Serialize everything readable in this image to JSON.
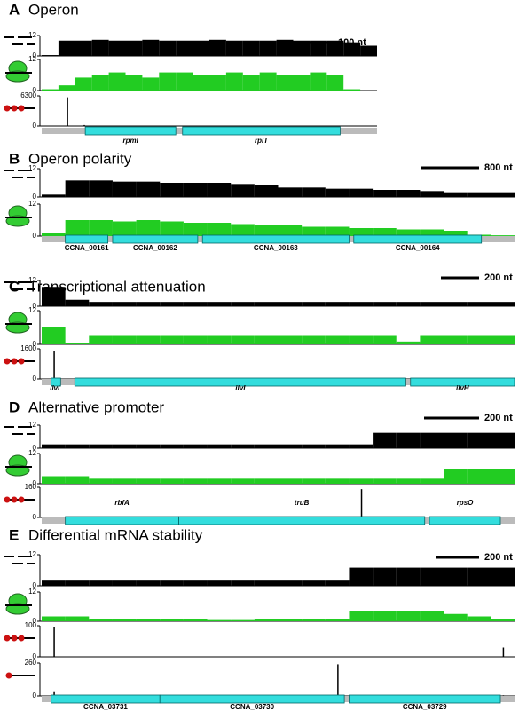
{
  "panels": [
    {
      "letter": "A",
      "title": "Operon",
      "scale_label": "100 nt",
      "tracks": [
        {
          "kind": "rna",
          "color": "#000000",
          "yticks": [
            0,
            12
          ],
          "profile": [
            0.5,
            9,
            9,
            9.5,
            9,
            9,
            9.5,
            9,
            9,
            9,
            9.5,
            9,
            9,
            9,
            9.5,
            9,
            9,
            9,
            8,
            6
          ]
        },
        {
          "kind": "ribosome",
          "color": "#22cc22",
          "yticks": [
            0,
            12
          ],
          "profile": [
            0.5,
            2,
            5,
            6,
            7,
            6,
            5,
            7,
            7,
            6,
            6,
            7,
            6,
            7,
            6,
            6,
            7,
            6,
            0.5,
            0
          ]
        },
        {
          "kind": "polysome",
          "color": "#000000",
          "yticks": [
            0,
            6300
          ],
          "profile": [
            0,
            6000,
            200,
            0,
            0,
            0,
            0,
            0,
            0,
            0,
            0,
            0,
            0,
            0,
            0,
            0,
            0,
            0,
            0,
            0
          ]
        }
      ],
      "genes": [
        "rpmI",
        "rplT"
      ]
    },
    {
      "letter": "B",
      "title": "Operon polarity",
      "scale_label": "800 nt",
      "tracks": [
        {
          "kind": "rna",
          "color": "#000000",
          "yticks": [
            0,
            12
          ],
          "profile": [
            1,
            7,
            7,
            6.5,
            6.5,
            6,
            6,
            6,
            5.5,
            5,
            4,
            4,
            3.5,
            3.5,
            3,
            3,
            2.5,
            2,
            2,
            2
          ]
        },
        {
          "kind": "ribosome",
          "color": "#22cc22",
          "yticks": [
            0,
            12
          ],
          "profile": [
            1,
            6,
            6,
            5.5,
            6,
            5.5,
            5,
            5,
            4.5,
            4,
            4,
            3.5,
            3.5,
            3,
            3,
            2.5,
            2.5,
            2,
            0.5,
            0.3
          ]
        }
      ],
      "genes": [
        "CCNA_00161",
        "CCNA_00162",
        "CCNA_00163",
        "CCNA_00164"
      ]
    },
    {
      "letter": "C",
      "title": "Transcriptional attenuation",
      "scale_label": "200 nt",
      "tracks": [
        {
          "kind": "rna",
          "color": "#000000",
          "yticks": [
            0,
            12
          ],
          "profile": [
            9,
            3,
            2,
            2,
            2,
            2,
            2,
            2,
            2,
            2,
            2,
            2,
            2,
            2,
            2,
            2,
            2,
            2,
            2,
            2
          ]
        },
        {
          "kind": "ribosome",
          "color": "#22cc22",
          "yticks": [
            0,
            12
          ],
          "profile": [
            6,
            0.5,
            3,
            3,
            3,
            3,
            3,
            3,
            3,
            3,
            3,
            3,
            3,
            3,
            3,
            1,
            3,
            3,
            3,
            3
          ]
        },
        {
          "kind": "polysome",
          "color": "#000000",
          "yticks": [
            0,
            1600
          ],
          "profile": [
            1500,
            0,
            0,
            0,
            0,
            0,
            0,
            0,
            0,
            0,
            0,
            0,
            0,
            0,
            0,
            0,
            0,
            0,
            0,
            0
          ]
        }
      ],
      "genes": [
        "ilvL",
        "ilvI",
        "ilvH"
      ]
    },
    {
      "letter": "D",
      "title": "Alternative promoter",
      "scale_label": "200 nt",
      "tracks": [
        {
          "kind": "rna",
          "color": "#000000",
          "yticks": [
            0,
            12
          ],
          "profile": [
            2,
            2,
            2,
            2,
            2,
            2,
            2,
            2,
            2,
            2,
            2,
            2,
            2,
            2,
            8,
            8,
            8,
            8,
            8,
            8
          ]
        },
        {
          "kind": "ribosome",
          "color": "#22cc22",
          "yticks": [
            0,
            12
          ],
          "profile": [
            3,
            3,
            2,
            2,
            2,
            2,
            2,
            2,
            2,
            2,
            2,
            2,
            2,
            2,
            2,
            2,
            2,
            6,
            6,
            6
          ]
        },
        {
          "kind": "polysome",
          "color": "#000000",
          "yticks": [
            0,
            160
          ],
          "profile": [
            0,
            0,
            0,
            0,
            0,
            0,
            0,
            0,
            0,
            0,
            0,
            0,
            0,
            150,
            0,
            0,
            0,
            0,
            0,
            0
          ]
        }
      ],
      "genes": [
        "rbfA",
        "truB",
        "rpsO"
      ]
    },
    {
      "letter": "E",
      "title": "Differential mRNA stability",
      "scale_label": "200 nt",
      "tracks": [
        {
          "kind": "rna",
          "color": "#000000",
          "yticks": [
            0,
            12
          ],
          "profile": [
            2,
            2,
            2,
            2,
            2,
            2,
            2,
            2,
            2,
            2,
            2,
            2,
            2,
            7,
            7,
            7,
            7,
            7,
            7,
            7
          ]
        },
        {
          "kind": "ribosome",
          "color": "#22cc22",
          "yticks": [
            0,
            12
          ],
          "profile": [
            2,
            2,
            1,
            1,
            1,
            1,
            1,
            0.5,
            0.5,
            1,
            1,
            1,
            1,
            4,
            4,
            4,
            4,
            3,
            2,
            1
          ]
        },
        {
          "kind": "polysome",
          "color": "#000000",
          "yticks": [
            0,
            100
          ],
          "profile": [
            95,
            0,
            0,
            0,
            0,
            0,
            0,
            0,
            0,
            0,
            0,
            0,
            0,
            0,
            0,
            0,
            0,
            0,
            0,
            30
          ]
        },
        {
          "kind": "monosome",
          "color": "#000000",
          "yticks": [
            0,
            260
          ],
          "profile": [
            30,
            5,
            5,
            5,
            5,
            5,
            5,
            5,
            5,
            5,
            5,
            5,
            250,
            5,
            5,
            5,
            5,
            5,
            5,
            5
          ]
        }
      ],
      "genes": [
        "CCNA_03731",
        "CCNA_03730",
        "CCNA_03729"
      ]
    }
  ]
}
